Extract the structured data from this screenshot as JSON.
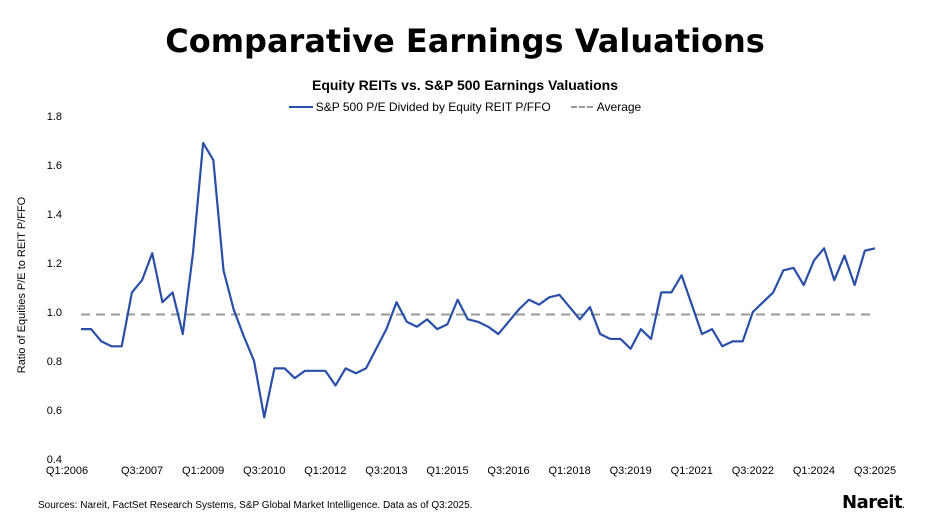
{
  "title": "Comparative Earnings Valuations",
  "chart_data": {
    "type": "line",
    "title": "Equity REITs vs. S&P 500 Earnings Valuations",
    "ylabel": "Ratio of Equities P/E to REIT P/FFO",
    "xlabel": "",
    "ylim": [
      0.4,
      1.8
    ],
    "yticks": [
      "0.4",
      "0.6",
      "0.8",
      "1.0",
      "1.2",
      "1.4",
      "1.6",
      "1.8"
    ],
    "grid": false,
    "legend_placement": "top",
    "xtick_labels": [
      "Q1:2006",
      "Q3:2007",
      "Q1:2009",
      "Q3:2010",
      "Q1:2012",
      "Q3:2013",
      "Q1:2015",
      "Q3:2016",
      "Q1:2018",
      "Q3:2019",
      "Q1:2021",
      "Q3:2022",
      "Q1:2024",
      "Q3:2025"
    ],
    "x_start": "Q1:2006",
    "x_end": "Q3:2025",
    "x_frequency": "quarterly",
    "series": [
      {
        "name": "S&P 500 P/E Divided by Equity REIT P/FFO",
        "color": "#2a4fa6",
        "style": "solid",
        "values": [
          0.93,
          0.93,
          0.88,
          0.86,
          0.86,
          1.08,
          1.13,
          1.24,
          1.04,
          1.08,
          0.91,
          1.24,
          1.69,
          1.62,
          1.17,
          1.01,
          0.9,
          0.8,
          0.57,
          0.77,
          0.77,
          0.73,
          0.76,
          0.76,
          0.76,
          0.7,
          0.77,
          0.75,
          0.77,
          0.85,
          0.93,
          1.04,
          0.96,
          0.94,
          0.97,
          0.93,
          0.95,
          1.05,
          0.97,
          0.96,
          0.94,
          0.91,
          0.96,
          1.01,
          1.05,
          1.03,
          1.06,
          1.07,
          1.02,
          0.97,
          1.02,
          0.91,
          0.89,
          0.89,
          0.85,
          0.93,
          0.89,
          1.08,
          1.08,
          1.15,
          1.03,
          0.91,
          0.93,
          0.86,
          0.88,
          0.88,
          1.0,
          1.04,
          1.08,
          1.17,
          1.18,
          1.11,
          1.21,
          1.26,
          1.13,
          1.23,
          1.11,
          1.25,
          1.26
        ]
      },
      {
        "name": "Average",
        "color": "#9a9a9a",
        "style": "dashed",
        "value": 0.99
      }
    ]
  },
  "source": "Sources: Nareit, FactSet Research Systems, S&P Global Market Intelligence. Data as of Q3:2025.",
  "logo": "Nareit"
}
